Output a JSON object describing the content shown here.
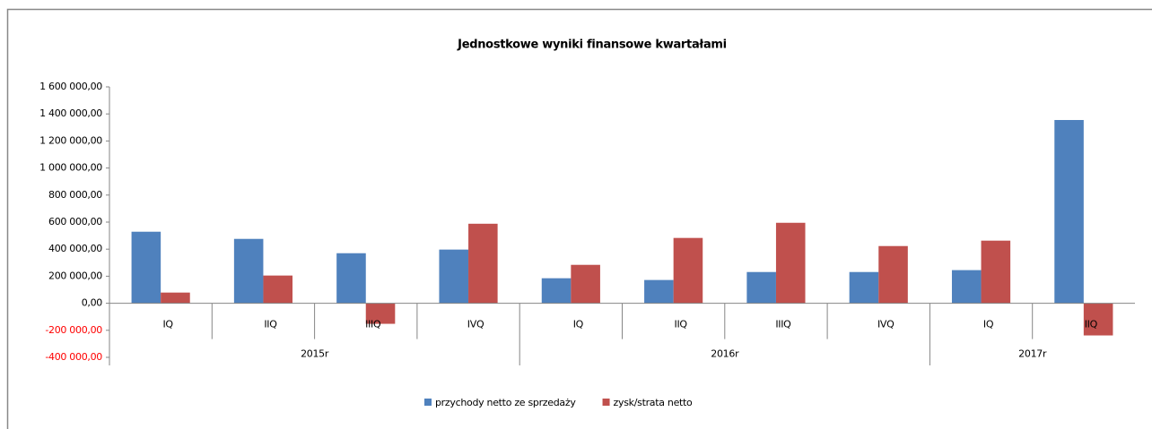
{
  "chart_data": {
    "type": "bar",
    "title": "Jednostkowe wyniki finansowe kwartałami",
    "groups": [
      {
        "name": "2015r",
        "categories": [
          "IQ",
          "IIQ",
          "IIIQ",
          "IVQ"
        ]
      },
      {
        "name": "2016r",
        "categories": [
          "IQ",
          "IIQ",
          "IIIQ",
          "IVQ"
        ]
      },
      {
        "name": "2017r",
        "categories": [
          "IQ",
          "IIQ"
        ]
      }
    ],
    "series": [
      {
        "name": "przychody netto ze sprzedaży",
        "color": "#4f81bd",
        "values": [
          529000,
          476000,
          370000,
          397000,
          185000,
          172000,
          231000,
          231000,
          245000,
          1355000
        ]
      },
      {
        "name": "zysk/strata netto",
        "color": "#c0504d",
        "values": [
          79000,
          205000,
          -152000,
          588000,
          284000,
          483000,
          595000,
          423000,
          463000,
          -238000
        ]
      }
    ],
    "ylim": [
      -400000,
      1600000
    ],
    "yticks": [
      {
        "value": -400000,
        "label": "-400 000,00"
      },
      {
        "value": -200000,
        "label": "-200 000,00"
      },
      {
        "value": 0,
        "label": "0,00"
      },
      {
        "value": 200000,
        "label": "200 000,00"
      },
      {
        "value": 400000,
        "label": "400 000,00"
      },
      {
        "value": 600000,
        "label": "600 000,00"
      },
      {
        "value": 800000,
        "label": "800 000,00"
      },
      {
        "value": 1000000,
        "label": "1 000 000,00"
      },
      {
        "value": 1200000,
        "label": "1 200 000,00"
      },
      {
        "value": 1400000,
        "label": "1 400 000,00"
      },
      {
        "value": 1600000,
        "label": "1 600 000,00"
      }
    ],
    "negative_tick_color": "#ff0000",
    "legend": "bottom"
  }
}
